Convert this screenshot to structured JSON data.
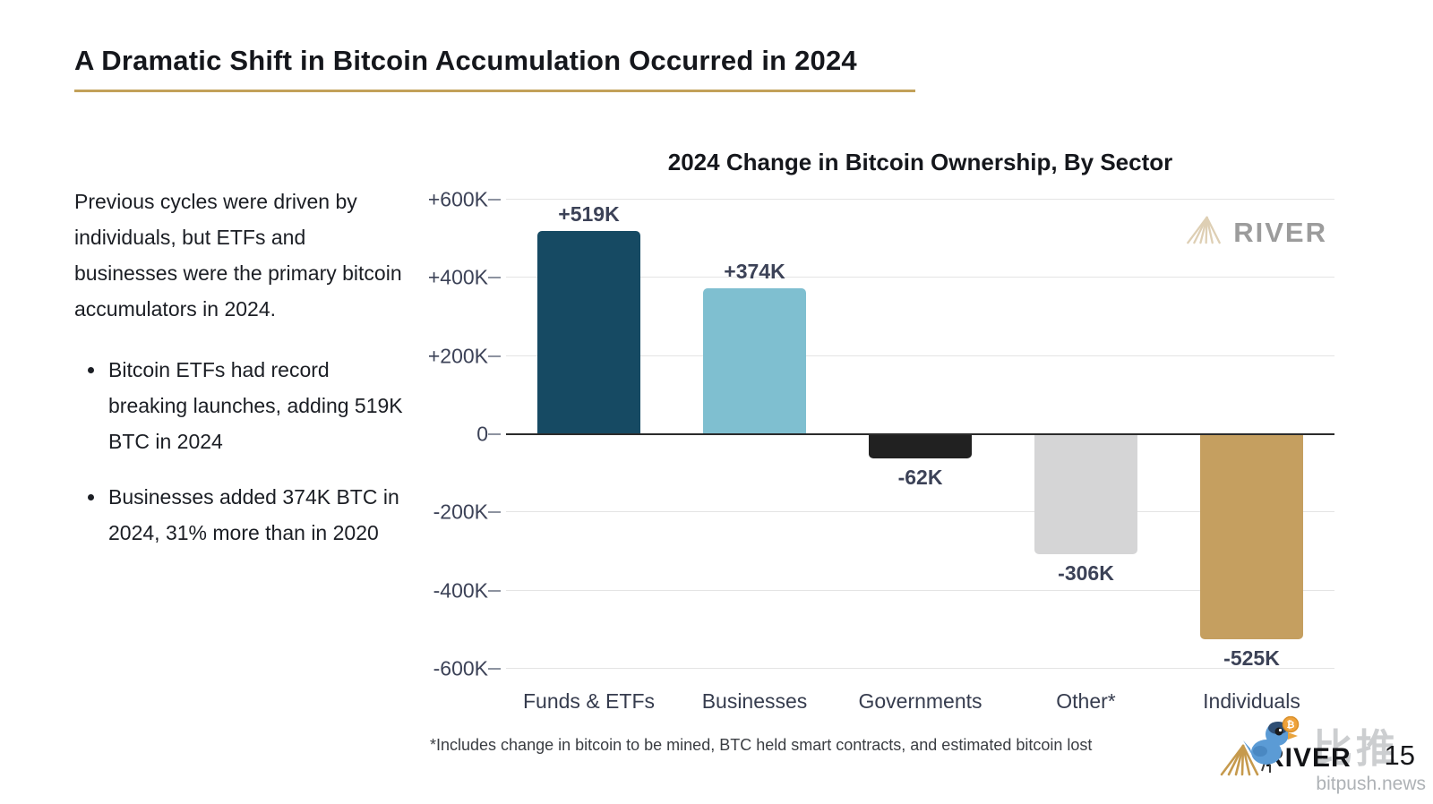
{
  "slide": {
    "title": "A Dramatic Shift in Bitcoin Accumulation Occurred in 2024",
    "accent_color": "#C2A159"
  },
  "sidebar": {
    "paragraph": "Previous cycles were driven by individuals, but ETFs and businesses were the primary bitcoin accumulators in 2024.",
    "bullets": [
      "Bitcoin ETFs had record breaking launches, adding 519K BTC in 2024",
      "Businesses added 374K BTC in 2024, 31% more than in 2020"
    ]
  },
  "chart_data": {
    "type": "bar",
    "title": "2024 Change in Bitcoin Ownership, By Sector",
    "categories": [
      "Funds & ETFs",
      "Businesses",
      "Governments",
      "Other*",
      "Individuals"
    ],
    "values": [
      519,
      374,
      -62,
      -306,
      -525
    ],
    "value_labels": [
      "+519K",
      "+374K",
      "-62K",
      "-306K",
      "-525K"
    ],
    "unit": "K BTC",
    "bar_colors": [
      "#164A63",
      "#7FBFD0",
      "#212121",
      "#D5D5D6",
      "#C59F60"
    ],
    "ylim": [
      -600,
      600
    ],
    "y_ticks": [
      {
        "value": 600,
        "label": "+600K"
      },
      {
        "value": 400,
        "label": "+400K"
      },
      {
        "value": 200,
        "label": "+200K"
      },
      {
        "value": 0,
        "label": "0"
      },
      {
        "value": -200,
        "label": "-200K"
      },
      {
        "value": -400,
        "label": "-400K"
      },
      {
        "value": -600,
        "label": "-600K"
      }
    ],
    "grid": true,
    "grid_color": "#E4E4E4",
    "zero_line_color": "#2B2B2B",
    "axis_label_color": "#3C4257",
    "watermark_label": "RIVER",
    "footnote": "*Includes change in bitcoin to be mined, BTC held smart contracts, and estimated bitcoin lost"
  },
  "footer": {
    "river_label": "RIVER",
    "bitpush_label": "比推",
    "bitpush_domain": "bitpush.news",
    "page_number": "15"
  }
}
